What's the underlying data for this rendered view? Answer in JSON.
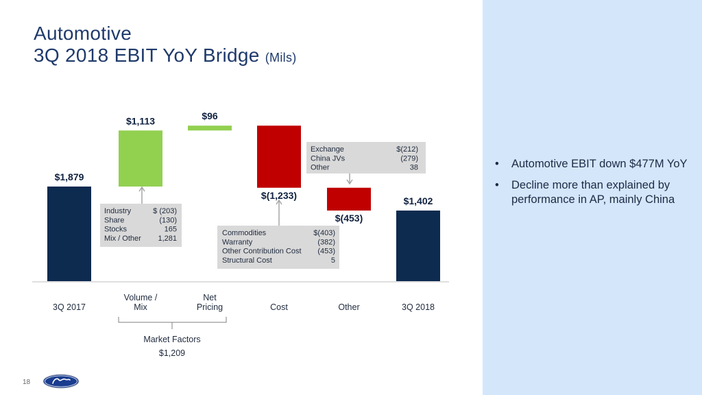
{
  "title": {
    "line1": "Automotive",
    "line2": "3Q 2018 EBIT YoY Bridge",
    "unit": "(Mils)"
  },
  "chart_data": {
    "type": "waterfall",
    "units": "Mils",
    "ylim": [
      0,
      3200
    ],
    "categories": [
      "3Q 2017",
      "Volume / Mix",
      "Net Pricing",
      "Cost",
      "Other",
      "3Q 2018"
    ],
    "category_lines": [
      [
        "",
        "3Q 2017"
      ],
      [
        "Volume /",
        "Mix"
      ],
      [
        "Net",
        "Pricing"
      ],
      [
        "",
        "Cost"
      ],
      [
        "",
        "Other"
      ],
      [
        "",
        "3Q 2018"
      ]
    ],
    "steps": [
      {
        "category": "3Q 2017",
        "kind": "total",
        "value": 1879,
        "label": "$1,879",
        "color": "#0d2a4f"
      },
      {
        "category": "Volume / Mix",
        "kind": "delta",
        "value": 1113,
        "label": "$1,113",
        "color": "#92d050"
      },
      {
        "category": "Net Pricing",
        "kind": "delta",
        "value": 96,
        "label": "$96",
        "color": "#92d050"
      },
      {
        "category": "Cost",
        "kind": "delta",
        "value": -1233,
        "label": "$(1,233)",
        "color": "#c00000"
      },
      {
        "category": "Other",
        "kind": "delta",
        "value": -453,
        "label": "$(453)",
        "color": "#c00000"
      },
      {
        "category": "3Q 2018",
        "kind": "total",
        "value": 1402,
        "label": "$1,402",
        "color": "#0d2a4f"
      }
    ],
    "annotations": [
      {
        "target": "Volume / Mix",
        "rows": [
          [
            "Industry",
            "$  (203)"
          ],
          [
            "Share",
            "(130)"
          ],
          [
            "Stocks",
            "165"
          ],
          [
            "Mix / Other",
            "1,281"
          ]
        ]
      },
      {
        "target": "Cost",
        "rows": [
          [
            "Commodities",
            "$(403)"
          ],
          [
            "Warranty",
            "(382)"
          ],
          [
            "Other Contribution Cost",
            "(453)"
          ],
          [
            "Structural Cost",
            "5"
          ]
        ]
      },
      {
        "target": "Other",
        "rows": [
          [
            "Exchange",
            "$(212)"
          ],
          [
            "China JVs",
            "(279)"
          ],
          [
            "Other",
            "38"
          ]
        ]
      }
    ],
    "bracket": {
      "label": "Market Factors",
      "value": "$1,209",
      "spans": [
        "Volume / Mix",
        "Net Pricing"
      ]
    }
  },
  "bullets": [
    "Automotive EBIT down $477M YoY",
    "Decline more than explained by performance in AP, mainly China"
  ],
  "bullet_char": "•",
  "page_number": "18",
  "logo": {
    "name": "ford-logo",
    "color": "#1a3d8f"
  }
}
